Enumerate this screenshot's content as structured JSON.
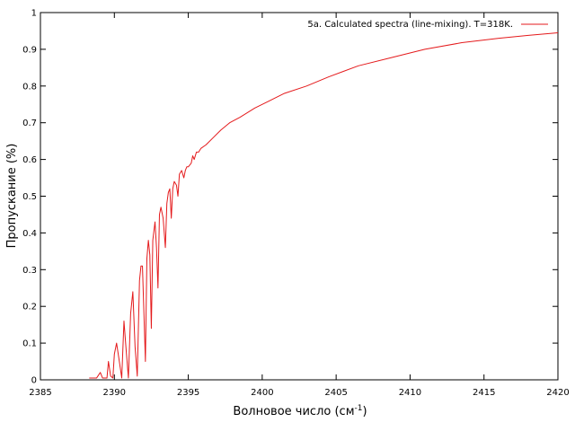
{
  "chart_data": {
    "type": "line",
    "title": "",
    "xlabel": "Волновое число (см",
    "xlabel_sup": "-1",
    "xlabel_end": ")",
    "ylabel": "Пропускание (%)",
    "xlim": [
      2385,
      2420
    ],
    "ylim": [
      0,
      1
    ],
    "x_ticks": [
      2385,
      2390,
      2395,
      2400,
      2405,
      2410,
      2415,
      2420
    ],
    "y_ticks": [
      0,
      0.1,
      0.2,
      0.3,
      0.4,
      0.5,
      0.6,
      0.7,
      0.8,
      0.9,
      1
    ],
    "x_tick_labels": [
      "2385",
      "2390",
      "2395",
      "2400",
      "2405",
      "2410",
      "2415",
      "2420"
    ],
    "y_tick_labels": [
      "0",
      "0.1",
      "0.2",
      "0.3",
      "0.4",
      "0.5",
      "0.6",
      "0.7",
      "0.8",
      "0.9",
      "1"
    ],
    "grid": false,
    "legend_position": "top-right",
    "series_color": "#e41a1c",
    "series": [
      {
        "name": "5a. Calculated spectra (line-mixing). T=318K.",
        "x": [
          2388.3,
          2388.8,
          2389.05,
          2389.2,
          2389.35,
          2389.5,
          2389.6,
          2389.75,
          2389.9,
          2390.0,
          2390.15,
          2390.3,
          2390.5,
          2390.65,
          2390.8,
          2390.95,
          2391.1,
          2391.25,
          2391.4,
          2391.55,
          2391.7,
          2391.8,
          2391.9,
          2392.0,
          2392.1,
          2392.2,
          2392.3,
          2392.4,
          2392.5,
          2392.6,
          2392.75,
          2392.85,
          2392.95,
          2393.05,
          2393.15,
          2393.3,
          2393.45,
          2393.55,
          2393.65,
          2393.75,
          2393.85,
          2393.95,
          2394.05,
          2394.2,
          2394.3,
          2394.4,
          2394.55,
          2394.7,
          2394.8,
          2394.9,
          2395.0,
          2395.2,
          2395.3,
          2395.4,
          2395.55,
          2395.7,
          2395.85,
          2396.2,
          2396.7,
          2397.2,
          2397.8,
          2398.5,
          2399.5,
          2400.5,
          2401.5,
          2403.0,
          2404.5,
          2406.5,
          2408.5,
          2411.0,
          2413.5,
          2416.0,
          2418.0,
          2420.0
        ],
        "y": [
          0.005,
          0.005,
          0.02,
          0.005,
          0.005,
          0.005,
          0.05,
          0.01,
          0.005,
          0.07,
          0.1,
          0.06,
          0.005,
          0.16,
          0.08,
          0.005,
          0.18,
          0.24,
          0.09,
          0.01,
          0.27,
          0.31,
          0.31,
          0.18,
          0.05,
          0.33,
          0.38,
          0.34,
          0.14,
          0.38,
          0.43,
          0.36,
          0.25,
          0.45,
          0.47,
          0.44,
          0.36,
          0.48,
          0.51,
          0.52,
          0.44,
          0.52,
          0.54,
          0.53,
          0.5,
          0.56,
          0.57,
          0.55,
          0.57,
          0.58,
          0.58,
          0.59,
          0.61,
          0.6,
          0.62,
          0.62,
          0.63,
          0.64,
          0.66,
          0.68,
          0.7,
          0.715,
          0.74,
          0.76,
          0.78,
          0.8,
          0.825,
          0.855,
          0.875,
          0.9,
          0.918,
          0.93,
          0.938,
          0.945
        ]
      }
    ]
  }
}
